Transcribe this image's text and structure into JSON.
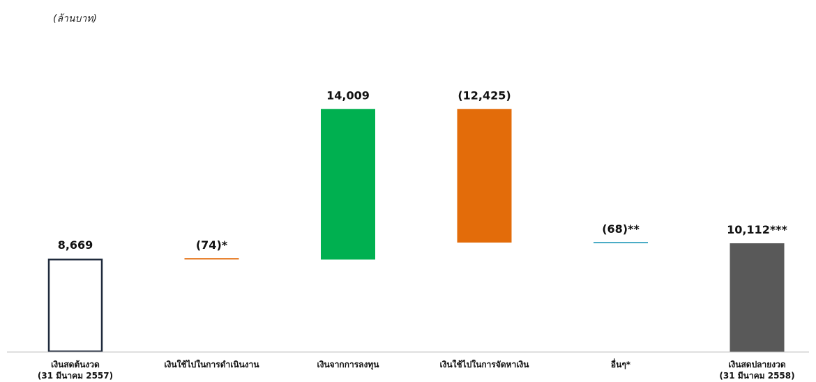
{
  "chart_data": {
    "type": "waterfall",
    "unit_label": "(ล้านบาท)",
    "ylim": [
      0,
      28000
    ],
    "grid": false,
    "legend": "none",
    "steps": [
      {
        "category": [
          "เงินสดต้นงวด",
          "(31 มีนาคม 2557)"
        ],
        "value": 8669,
        "kind": "total",
        "label": "8,669",
        "color": "#ffffff",
        "outline": "#1f2a3c"
      },
      {
        "category": [
          "เงินใช้ไปในการดำเนินงาน"
        ],
        "value": -74,
        "kind": "delta",
        "label": "(74)*",
        "color": "#e36c0a"
      },
      {
        "category": [
          "เงินจากการลงทุน"
        ],
        "value": 14009,
        "kind": "delta",
        "label": "14,009",
        "color": "#00b050"
      },
      {
        "category": [
          "เงินใช้ไปในการจัดหาเงิน"
        ],
        "value": -12425,
        "kind": "delta",
        "label": "(12,425)",
        "color": "#e36c0a"
      },
      {
        "category": [
          "อื่นๆ*"
        ],
        "value": -68,
        "kind": "delta",
        "label": "(68)**",
        "color": "#4bacc6"
      },
      {
        "category": [
          "เงินสดปลายงวด",
          "(31 มีนาคม 2558)"
        ],
        "value": 10112,
        "kind": "total",
        "label": "10,112***",
        "color": "#595959"
      }
    ]
  }
}
